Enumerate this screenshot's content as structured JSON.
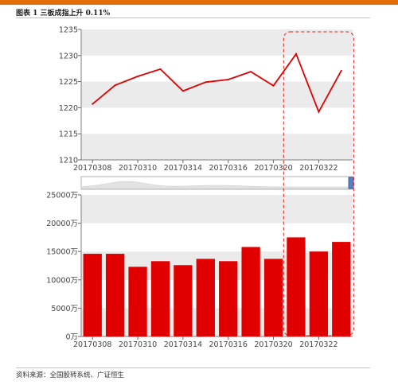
{
  "figure": {
    "title": "图表 1 三板成指上升 0.11%",
    "source": "资料来源：全国股转系统、广证恒生"
  },
  "colors": {
    "accent_bar": "#e46c0a",
    "series": "#e00000",
    "band": "#ebebeb",
    "highlight_box": "#e0201a"
  },
  "chart_data": [
    {
      "type": "line",
      "x": [
        "20170308",
        "20170309",
        "20170310",
        "20170313",
        "20170314",
        "20170315",
        "20170316",
        "20170317",
        "20170320",
        "20170321",
        "20170322",
        "20170323"
      ],
      "series": [
        {
          "values": [
            1220.7,
            1224.3,
            1226.0,
            1227.4,
            1223.2,
            1224.9,
            1225.4,
            1226.9,
            1224.2,
            1230.3,
            1219.2,
            1227.1
          ]
        }
      ],
      "xticks": [
        "20170308",
        "20170310",
        "20170314",
        "20170316",
        "20170320",
        "20170322"
      ],
      "yticks": [
        "1235",
        "1230",
        "1225",
        "1220",
        "1215",
        "1210"
      ],
      "ylim": [
        1210,
        1235
      ],
      "title": "",
      "xlabel": "",
      "ylabel": "",
      "grid": "alternating horizontal bands",
      "highlight": [
        "20170321",
        "20170323"
      ]
    },
    {
      "type": "bar",
      "categories": [
        "20170308",
        "20170309",
        "20170310",
        "20170313",
        "20170314",
        "20170315",
        "20170316",
        "20170317",
        "20170320",
        "20170321",
        "20170322",
        "20170323"
      ],
      "series": [
        {
          "values": [
            146000,
            146000,
            123000,
            133000,
            126000,
            137000,
            133000,
            158000,
            137000,
            175000,
            150000,
            167000
          ]
        }
      ],
      "xticks": [
        "20170308",
        "20170310",
        "20170314",
        "20170316",
        "20170320",
        "20170322"
      ],
      "yticks": [
        "25000万",
        "20000万",
        "15000万",
        "10000万",
        "5000万",
        "0万"
      ],
      "ylim": [
        0,
        250000
      ],
      "title": "",
      "xlabel": "",
      "ylabel": "",
      "grid": "alternating horizontal bands",
      "highlight": [
        "20170321",
        "20170323"
      ]
    }
  ]
}
